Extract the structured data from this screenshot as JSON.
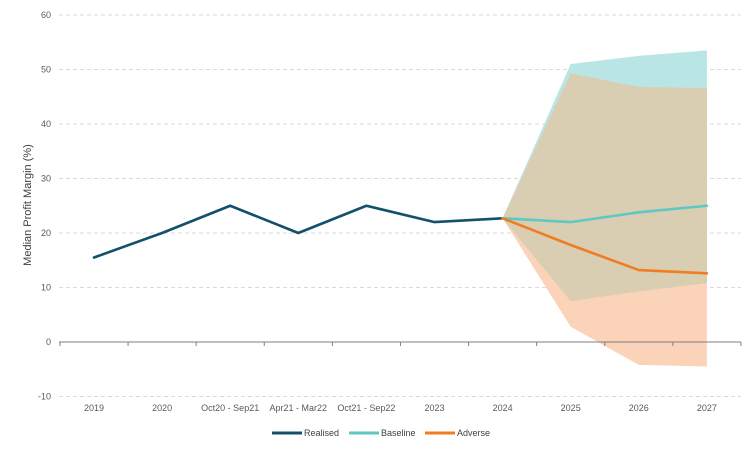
{
  "chart_data": {
    "type": "line",
    "title": "",
    "xlabel": "",
    "ylabel": "Median Profit Margin (%)",
    "ylim": [
      -10,
      60
    ],
    "yticks": [
      -10,
      0,
      10,
      20,
      30,
      40,
      50,
      60
    ],
    "grid": "horizontal dashed",
    "legend_position": "bottom-center",
    "categories": [
      "2019",
      "2020",
      "Oct20 - Sep21",
      "Apr21 - Mar22",
      "Oct21 - Sep22",
      "2023",
      "2024",
      "2025",
      "2026",
      "2027"
    ],
    "series": [
      {
        "name": "Realised",
        "color": "#14506a",
        "values": [
          15.5,
          20,
          25,
          20,
          25,
          22,
          22.7,
          null,
          null,
          null
        ]
      },
      {
        "name": "Baseline",
        "color": "#5ec8c2",
        "values": [
          null,
          null,
          null,
          null,
          null,
          null,
          22.7,
          22,
          23.8,
          25
        ],
        "band": {
          "color": "#b9e6e4",
          "upper": [
            null,
            null,
            null,
            null,
            null,
            null,
            22.7,
            51,
            52.5,
            53.5
          ],
          "lower": [
            null,
            null,
            null,
            null,
            null,
            null,
            22.7,
            7.5,
            9.3,
            10.8
          ]
        }
      },
      {
        "name": "Adverse",
        "color": "#f07d22",
        "values": [
          null,
          null,
          null,
          null,
          null,
          null,
          22.7,
          17.8,
          13.2,
          12.6
        ],
        "band": {
          "color": "#fbd3b8",
          "upper": [
            null,
            null,
            null,
            null,
            null,
            null,
            22.7,
            49.3,
            46.8,
            46.6
          ],
          "lower": [
            null,
            null,
            null,
            null,
            null,
            null,
            22.7,
            2.8,
            -4.2,
            -4.5
          ]
        }
      }
    ],
    "overlap_color": "#d9cdb2"
  }
}
